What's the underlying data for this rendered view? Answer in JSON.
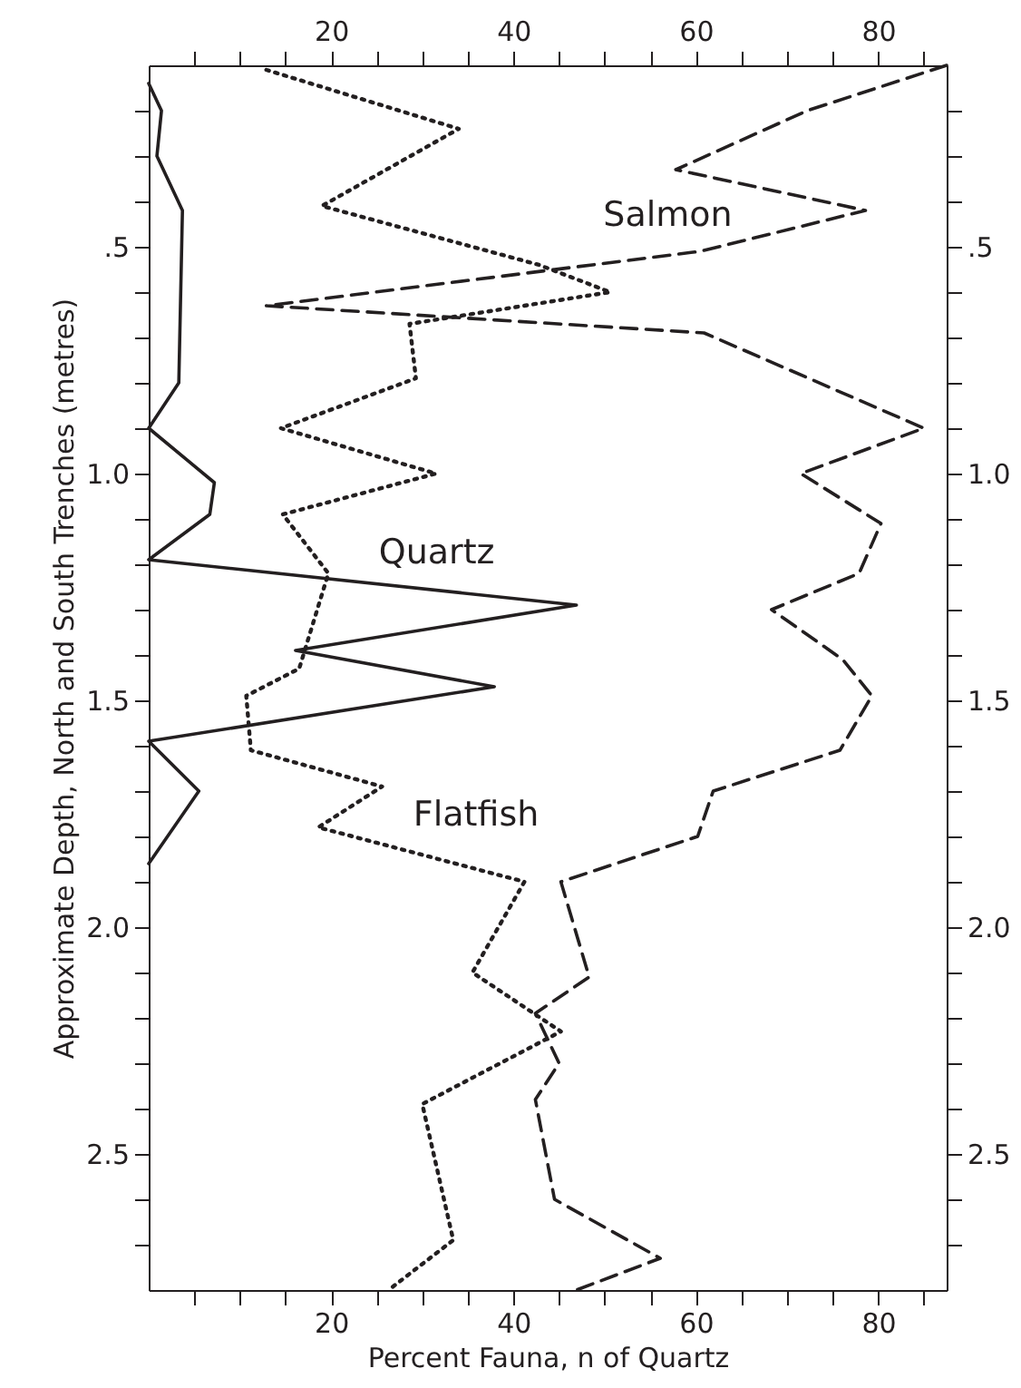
{
  "chart_data": {
    "type": "line",
    "orientation": "horizontal",
    "xlabel": "Percent Fauna, n of Quartz",
    "ylabel": "Approximate Depth, North and South Trenches (metres)",
    "xlim": [
      0,
      87.5
    ],
    "xticks": [
      {
        "value": 5,
        "label": null
      },
      {
        "value": 10,
        "label": null
      },
      {
        "value": 15,
        "label": null
      },
      20,
      {
        "value": 25,
        "label": null
      },
      {
        "value": 30,
        "label": null
      },
      {
        "value": 35,
        "label": null
      },
      40,
      {
        "value": 45,
        "label": null
      },
      {
        "value": 50,
        "label": null
      },
      {
        "value": 55,
        "label": null
      },
      60,
      {
        "value": 65,
        "label": null
      },
      {
        "value": 70,
        "label": null
      },
      {
        "value": 75,
        "label": null
      },
      80,
      {
        "value": 85,
        "label": null
      }
    ],
    "x2lim": [
      0,
      87.5
    ],
    "x2ticks": [
      {
        "value": 5,
        "label": null
      },
      {
        "value": 10,
        "label": null
      },
      {
        "value": 15,
        "label": null
      },
      20,
      {
        "value": 25,
        "label": null
      },
      {
        "value": 30,
        "label": null
      },
      {
        "value": 35,
        "label": null
      },
      40,
      {
        "value": 45,
        "label": null
      },
      {
        "value": 50,
        "label": null
      },
      {
        "value": 55,
        "label": null
      },
      60,
      {
        "value": 65,
        "label": null
      },
      {
        "value": 70,
        "label": null
      },
      {
        "value": 75,
        "label": null
      },
      80,
      {
        "value": 85,
        "label": null
      }
    ],
    "ylim": [
      2.8,
      0.1
    ],
    "yticks": [
      {
        "value": 0.2,
        "label": null
      },
      {
        "value": 0.3,
        "label": null
      },
      {
        "value": 0.4,
        "label": null
      },
      {
        "value": 0.5,
        "label": ".5"
      },
      {
        "value": 0.6,
        "label": null
      },
      {
        "value": 0.7,
        "label": null
      },
      {
        "value": 0.8,
        "label": null
      },
      {
        "value": 0.9,
        "label": null
      },
      {
        "value": 1.0,
        "label": "1.0"
      },
      {
        "value": 1.1,
        "label": null
      },
      {
        "value": 1.2,
        "label": null
      },
      {
        "value": 1.3,
        "label": null
      },
      {
        "value": 1.4,
        "label": null
      },
      {
        "value": 1.5,
        "label": "1.5"
      },
      {
        "value": 1.6,
        "label": null
      },
      {
        "value": 1.7,
        "label": null
      },
      {
        "value": 1.8,
        "label": null
      },
      {
        "value": 1.9,
        "label": null
      },
      {
        "value": 2.0,
        "label": "2.0"
      },
      {
        "value": 2.1,
        "label": null
      },
      {
        "value": 2.2,
        "label": null
      },
      {
        "value": 2.3,
        "label": null
      },
      {
        "value": 2.4,
        "label": null
      },
      {
        "value": 2.5,
        "label": "2.5"
      },
      {
        "value": 2.6,
        "label": null
      },
      {
        "value": 2.7,
        "label": null
      }
    ],
    "y2lim": [
      2.8,
      0.1
    ],
    "y2ticks": [
      {
        "value": 0.2,
        "label": null
      },
      {
        "value": 0.3,
        "label": null
      },
      {
        "value": 0.4,
        "label": null
      },
      {
        "value": 0.5,
        "label": ".5"
      },
      {
        "value": 0.6,
        "label": null
      },
      {
        "value": 0.7,
        "label": null
      },
      {
        "value": 0.8,
        "label": null
      },
      {
        "value": 0.9,
        "label": null
      },
      {
        "value": 1.0,
        "label": "1.0"
      },
      {
        "value": 1.1,
        "label": null
      },
      {
        "value": 1.2,
        "label": null
      },
      {
        "value": 1.3,
        "label": null
      },
      {
        "value": 1.4,
        "label": null
      },
      {
        "value": 1.5,
        "label": "1.5"
      },
      {
        "value": 1.6,
        "label": null
      },
      {
        "value": 1.7,
        "label": null
      },
      {
        "value": 1.8,
        "label": null
      },
      {
        "value": 1.9,
        "label": null
      },
      {
        "value": 2.0,
        "label": "2.0"
      },
      {
        "value": 2.1,
        "label": null
      },
      {
        "value": 2.2,
        "label": null
      },
      {
        "value": 2.3,
        "label": null
      },
      {
        "value": 2.4,
        "label": null
      },
      {
        "value": 2.5,
        "label": "2.5"
      },
      {
        "value": 2.6,
        "label": null
      },
      {
        "value": 2.7,
        "label": null
      }
    ],
    "grid": false,
    "marker": "none",
    "series": [
      {
        "name": "Quartz",
        "color": "#231f20",
        "line_style": "solid",
        "x": [
          0.14,
          0.2,
          0.3,
          0.42,
          0.8,
          0.9,
          1.02,
          1.09,
          1.19,
          1.29,
          1.39,
          1.47,
          1.59,
          1.7,
          1.86
        ],
        "values": [
          0,
          1.4,
          0.9,
          3.7,
          3.3,
          0,
          7.2,
          6.7,
          0,
          46.9,
          16.1,
          37.9,
          0,
          5.5,
          0
        ]
      },
      {
        "name": "Flatfish",
        "color": "#231f20",
        "line_style": "dotted",
        "x": [
          0.11,
          0.24,
          0.41,
          0.54,
          0.6,
          0.67,
          0.79,
          0.9,
          1.0,
          1.09,
          1.22,
          1.43,
          1.49,
          1.61,
          1.69,
          1.78,
          1.9,
          2.1,
          2.23,
          2.39,
          2.69,
          2.8
        ],
        "values": [
          12.9,
          34,
          19,
          42.8,
          50.6,
          28.6,
          29.3,
          14.5,
          31.5,
          14.7,
          19.7,
          16.5,
          10.7,
          11.2,
          25.6,
          18.6,
          41.2,
          35.5,
          45.2,
          30,
          33.4,
          26.3
        ]
      },
      {
        "name": "Salmon",
        "color": "#231f20",
        "line_style": "dashed",
        "x": [
          0.1,
          0.2,
          0.33,
          0.42,
          0.51,
          0.63,
          0.69,
          0.9,
          1.0,
          1.11,
          1.22,
          1.3,
          1.41,
          1.49,
          1.61,
          1.7,
          1.8,
          1.9,
          2.11,
          2.19,
          2.3,
          2.38,
          2.6,
          2.73,
          2.8
        ],
        "values": [
          87.5,
          72.2,
          57.8,
          78.6,
          60.5,
          12.9,
          60.9,
          85,
          71.5,
          80.3,
          77.9,
          68.3,
          76.1,
          79.3,
          75.8,
          61.9,
          60.2,
          45.2,
          48.3,
          42.4,
          45,
          42.4,
          44.5,
          56.1,
          46.9
        ]
      }
    ]
  }
}
